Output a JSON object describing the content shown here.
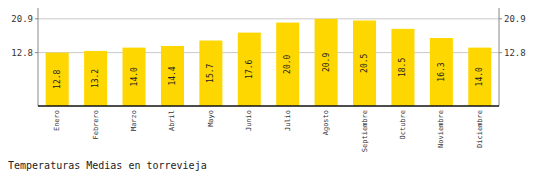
{
  "chart_data": {
    "type": "bar",
    "title": "Temperaturas Medias en torrevieja",
    "categories": [
      "Enero",
      "Febrero",
      "Marzo",
      "Abril",
      "Mayo",
      "Junio",
      "Julio",
      "Agosto",
      "Septiembre",
      "Octubre",
      "Noviembre",
      "Diciembre"
    ],
    "values": [
      12.8,
      13.2,
      14.0,
      14.4,
      15.7,
      17.6,
      20.0,
      20.9,
      20.5,
      18.5,
      16.3,
      14.0
    ],
    "value_labels": [
      "12.8",
      "13.2",
      "14.0",
      "14.4",
      "15.7",
      "17.6",
      "20.0",
      "20.9",
      "20.5",
      "18.5",
      "16.3",
      "14.0"
    ],
    "color": "#FFD700",
    "ylim": [
      0.0,
      23.5
    ],
    "yticks": [
      12.8,
      20.9
    ],
    "grid": true,
    "data_labels": true
  }
}
